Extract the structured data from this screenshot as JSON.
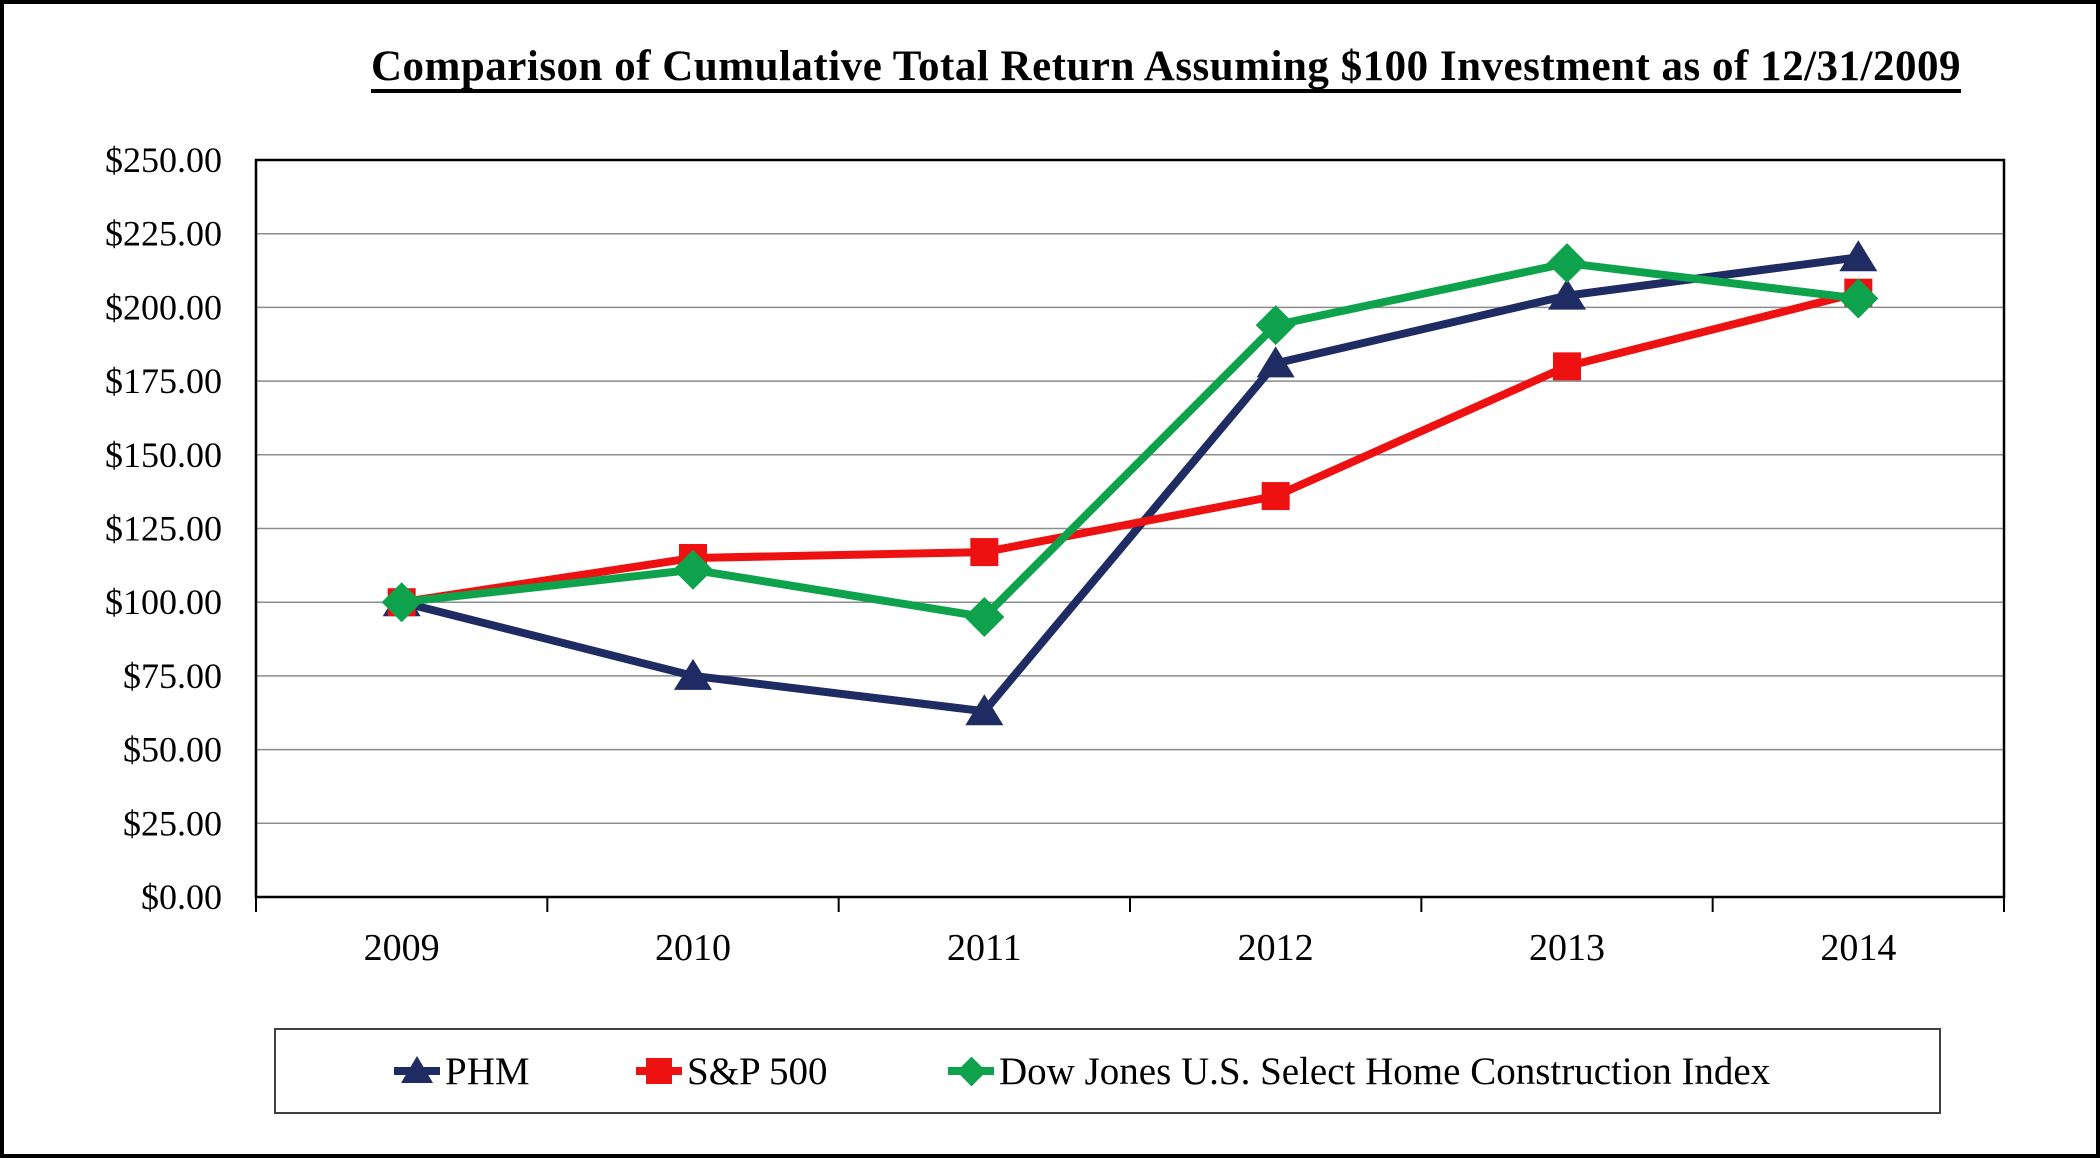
{
  "chart_data": {
    "type": "line",
    "title": "Comparison of Cumulative Total Return Assuming $100 Investment as of 12/31/2009",
    "categories": [
      "2009",
      "2010",
      "2011",
      "2012",
      "2013",
      "2014"
    ],
    "series": [
      {
        "name": "PHM",
        "marker": "triangle",
        "color": "#1F2B63",
        "values": [
          100,
          75,
          63,
          181,
          204,
          217
        ]
      },
      {
        "name": "S&P 500",
        "marker": "square",
        "color": "#EE1111",
        "values": [
          100,
          115,
          117,
          136,
          180,
          205
        ]
      },
      {
        "name": "Dow Jones U.S. Select Home Construction Index",
        "marker": "diamond",
        "color": "#0FA24C",
        "values": [
          100,
          111,
          95,
          194,
          215,
          203
        ]
      }
    ],
    "xlabel": "",
    "ylabel": "",
    "ylim": [
      0,
      250
    ],
    "y_tick_step": 25,
    "y_tick_labels": [
      "$0.00",
      "$25.00",
      "$50.00",
      "$75.00",
      "$100.00",
      "$125.00",
      "$150.00",
      "$175.00",
      "$200.00",
      "$225.00",
      "$250.00"
    ],
    "grid": "horizontal",
    "legend_position": "bottom",
    "colors": {
      "gridline": "#8c8c8c",
      "axis": "#000000",
      "text": "#000000"
    }
  }
}
